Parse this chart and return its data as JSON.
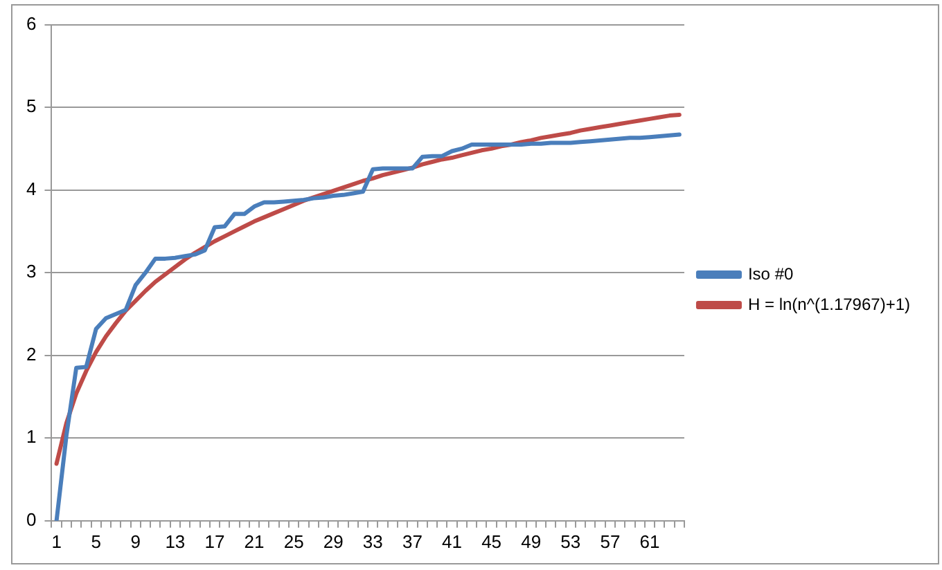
{
  "chart_data": {
    "type": "line",
    "categories": [
      "1",
      null,
      null,
      null,
      "5",
      null,
      null,
      null,
      "9",
      null,
      null,
      null,
      "13",
      null,
      null,
      null,
      "17",
      null,
      null,
      null,
      "21",
      null,
      null,
      null,
      "25",
      null,
      null,
      null,
      "29",
      null,
      null,
      null,
      "33",
      null,
      null,
      null,
      "37",
      null,
      null,
      null,
      "41",
      null,
      null,
      null,
      "45",
      null,
      null,
      null,
      "49",
      null,
      null,
      null,
      "53",
      null,
      null,
      null,
      "57",
      null,
      null,
      null,
      "61",
      null,
      null,
      null
    ],
    "series": [
      {
        "name": "Iso #0",
        "color": "#4a7ebb",
        "values": [
          0,
          1.03,
          1.85,
          1.86,
          2.32,
          2.45,
          2.5,
          2.55,
          2.85,
          3.0,
          3.17,
          3.17,
          3.18,
          3.2,
          3.22,
          3.27,
          3.55,
          3.56,
          3.71,
          3.71,
          3.8,
          3.85,
          3.85,
          3.86,
          3.87,
          3.88,
          3.9,
          3.91,
          3.93,
          3.94,
          3.96,
          3.98,
          4.25,
          4.26,
          4.26,
          4.26,
          4.26,
          4.4,
          4.41,
          4.41,
          4.47,
          4.5,
          4.55,
          4.55,
          4.55,
          4.55,
          4.55,
          4.55,
          4.56,
          4.56,
          4.57,
          4.57,
          4.57,
          4.58,
          4.59,
          4.6,
          4.61,
          4.62,
          4.63,
          4.63,
          4.64,
          4.65,
          4.66,
          4.67
        ]
      },
      {
        "name": "H = ln(n^(1.17967)+1)",
        "color": "#be4b48",
        "values": [
          0.69,
          1.18,
          1.54,
          1.81,
          2.04,
          2.23,
          2.39,
          2.54,
          2.66,
          2.78,
          2.89,
          2.98,
          3.07,
          3.16,
          3.24,
          3.31,
          3.38,
          3.44,
          3.5,
          3.56,
          3.62,
          3.67,
          3.72,
          3.77,
          3.82,
          3.87,
          3.91,
          3.95,
          3.99,
          4.03,
          4.07,
          4.11,
          4.14,
          4.18,
          4.21,
          4.24,
          4.27,
          4.31,
          4.34,
          4.37,
          4.39,
          4.42,
          4.45,
          4.48,
          4.5,
          4.53,
          4.55,
          4.58,
          4.6,
          4.63,
          4.65,
          4.67,
          4.69,
          4.72,
          4.74,
          4.76,
          4.78,
          4.8,
          4.82,
          4.84,
          4.86,
          4.88,
          4.9,
          4.91
        ]
      }
    ],
    "ylim": [
      0,
      6
    ],
    "yticks": [
      0,
      1,
      2,
      3,
      4,
      5,
      6
    ],
    "grid": "y",
    "legend": "right",
    "marker": "none",
    "line_style": "solid"
  }
}
